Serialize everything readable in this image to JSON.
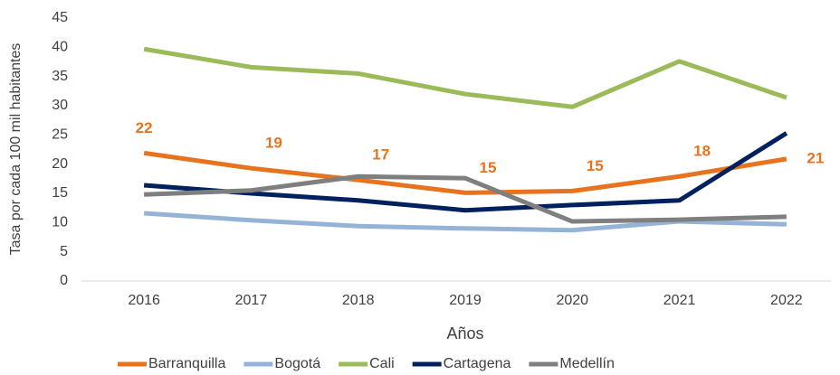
{
  "chart_data": {
    "type": "line",
    "x_label": "Años",
    "y_label": "Tasa por cada 100 mil habitantes",
    "categories": [
      "2016",
      "2017",
      "2018",
      "2019",
      "2020",
      "2021",
      "2022"
    ],
    "series": [
      {
        "name": "Barranquilla",
        "color": "#e8731f",
        "values": [
          21.9,
          19.3,
          17.3,
          15.1,
          15.4,
          17.9,
          20.9
        ],
        "value_labels": [
          "22",
          "19",
          "17",
          "15",
          "15",
          "18",
          "21"
        ]
      },
      {
        "name": "Bogotá",
        "color": "#95b3d7",
        "values": [
          11.6,
          10.4,
          9.4,
          9.0,
          8.7,
          10.2,
          9.7
        ]
      },
      {
        "name": "Cali",
        "color": "#9bbb59",
        "values": [
          39.7,
          36.6,
          35.5,
          32.0,
          29.8,
          37.6,
          31.4
        ]
      },
      {
        "name": "Cartagena",
        "color": "#002060",
        "values": [
          16.4,
          15.0,
          13.8,
          12.1,
          13.0,
          13.8,
          25.3
        ]
      },
      {
        "name": "Medellín",
        "color": "#7f7f7f",
        "values": [
          14.8,
          15.5,
          17.9,
          17.6,
          10.2,
          10.5,
          11.0
        ]
      }
    ],
    "ylim": [
      0,
      45
    ],
    "yticks": [
      0,
      5,
      10,
      15,
      20,
      25,
      30,
      35,
      40,
      45
    ],
    "grid": false,
    "legend": "bottom"
  }
}
